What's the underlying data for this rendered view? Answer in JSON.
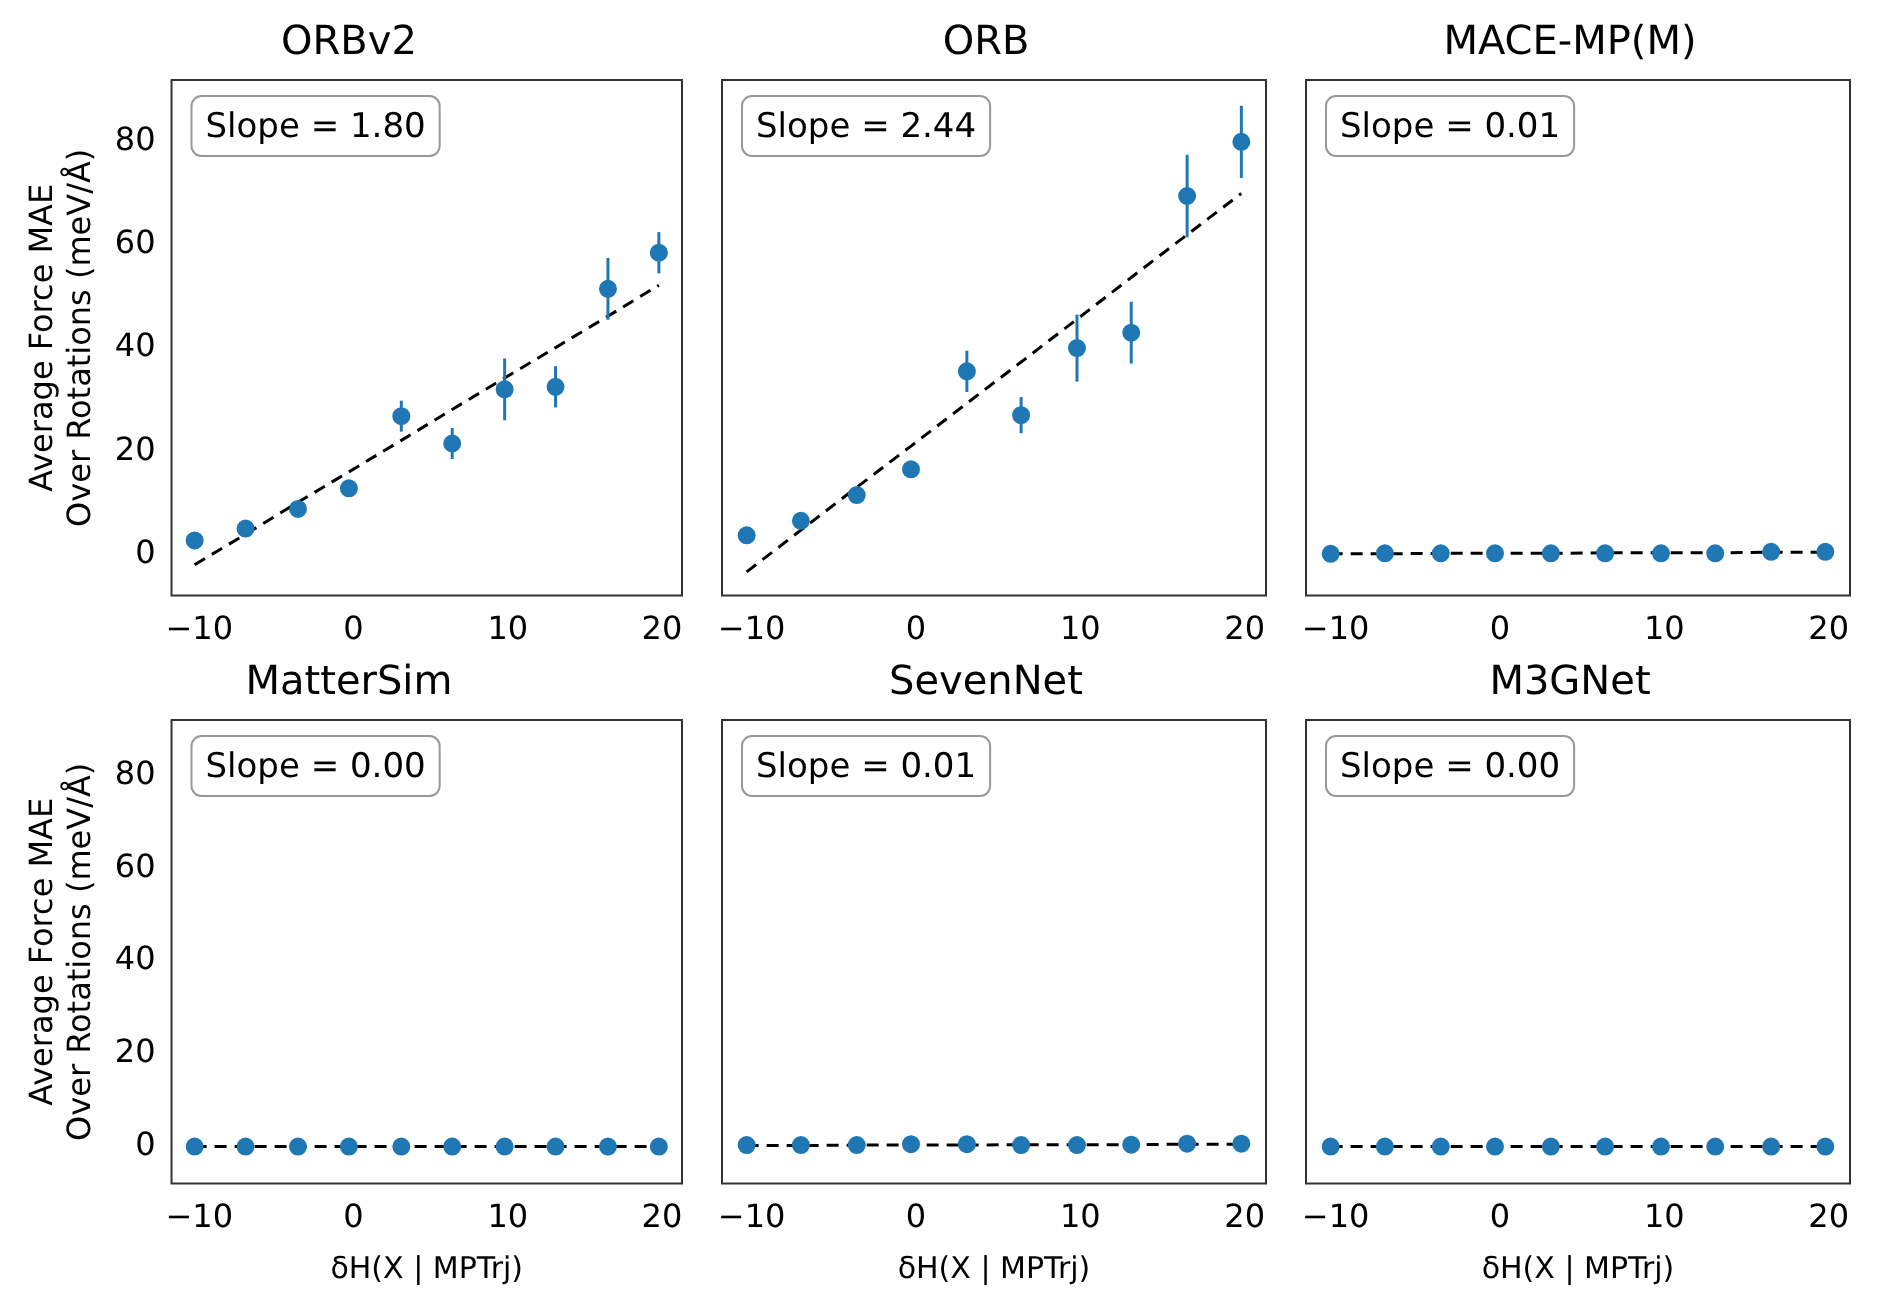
{
  "chart_data": [
    {
      "type": "scatter",
      "title": "ORBv2",
      "ylabel": "Average Force MAE\nOver Rotations (meV/Å)",
      "x": [
        -10.3,
        -7,
        -3.6,
        -0.3,
        3.1,
        6.4,
        9.8,
        13.1,
        16.5,
        19.8
      ],
      "xlim": [
        -11.8,
        21.3
      ],
      "ylim": [
        -8,
        92
      ],
      "xticks": [
        -10,
        0,
        10,
        20
      ],
      "yticks": [
        0,
        20,
        40,
        60,
        80
      ],
      "annotations": [
        "Slope = 1.80"
      ],
      "marker": "circle",
      "series": [
        {
          "type": "scatter",
          "color": "#1f77b4",
          "values": [
            2.7,
            5,
            8.8,
            12.8,
            26.8,
            21.5,
            32,
            32.5,
            51.5,
            58.5
          ],
          "errors": [
            null,
            null,
            null,
            null,
            3,
            3,
            6,
            4,
            6,
            4
          ]
        },
        {
          "type": "line",
          "color": "#000000",
          "line_style": "dashed",
          "marker": "none",
          "values": [
            -2,
            3.9,
            10.1,
            16.0,
            22.1,
            28.1,
            34.2,
            40.1,
            46.2,
            52.2
          ]
        }
      ]
    },
    {
      "type": "scatter",
      "title": "ORB",
      "x": [
        -10.3,
        -7,
        -3.6,
        -0.3,
        3.1,
        6.4,
        9.8,
        13.1,
        16.5,
        19.8
      ],
      "xlim": [
        -11.8,
        21.3
      ],
      "ylim": [
        -8,
        92
      ],
      "xticks": [
        -10,
        0,
        10,
        20
      ],
      "yticks": [
        0,
        20,
        40,
        60,
        80
      ],
      "tick_labels": "x",
      "annotations": [
        "Slope = 2.44"
      ],
      "marker": "circle",
      "series": [
        {
          "type": "scatter",
          "color": "#1f77b4",
          "values": [
            3.7,
            6.5,
            11.5,
            16.5,
            35.5,
            27,
            40,
            43,
            69.5,
            80
          ],
          "errors": [
            null,
            null,
            null,
            null,
            4,
            3.5,
            6.5,
            6,
            8,
            7
          ]
        },
        {
          "type": "line",
          "color": "#000000",
          "line_style": "dashed",
          "marker": "none",
          "values": [
            -3.4,
            4.7,
            13.0,
            21.0,
            29.3,
            37.3,
            45.6,
            53.7,
            62.0,
            70.0
          ]
        }
      ]
    },
    {
      "type": "scatter",
      "title": "MACE-MP(M)",
      "x": [
        -10.3,
        -7,
        -3.6,
        -0.3,
        3.1,
        6.4,
        9.8,
        13.1,
        16.5,
        19.8
      ],
      "xlim": [
        -11.8,
        21.3
      ],
      "ylim": [
        -8,
        92
      ],
      "xticks": [
        -10,
        0,
        10,
        20
      ],
      "yticks": [
        0,
        20,
        40,
        60,
        80
      ],
      "tick_labels": "x",
      "annotations": [
        "Slope = 0.01"
      ],
      "marker": "circle",
      "series": [
        {
          "type": "scatter",
          "color": "#1f77b4",
          "values": [
            0.1,
            0.2,
            0.2,
            0.2,
            0.2,
            0.2,
            0.2,
            0.2,
            0.5,
            0.5
          ]
        },
        {
          "type": "line",
          "color": "#000000",
          "line_style": "dashed",
          "marker": "none",
          "values": [
            0.1,
            0.1,
            0.2,
            0.2,
            0.2,
            0.3,
            0.3,
            0.3,
            0.4,
            0.4
          ]
        }
      ]
    },
    {
      "type": "scatter",
      "title": "MatterSim",
      "xlabel": "δH(X | MPTrj)",
      "ylabel": "Average Force MAE\nOver Rotations (meV/Å)",
      "x": [
        -10.3,
        -7,
        -3.6,
        -0.3,
        3.1,
        6.4,
        9.8,
        13.1,
        16.5,
        19.8
      ],
      "xlim": [
        -11.8,
        21.3
      ],
      "ylim": [
        -8,
        92
      ],
      "xticks": [
        -10,
        0,
        10,
        20
      ],
      "yticks": [
        0,
        20,
        40,
        60,
        80
      ],
      "annotations": [
        "Slope = 0.00"
      ],
      "marker": "circle",
      "series": [
        {
          "type": "scatter",
          "color": "#1f77b4",
          "values": [
            0,
            0,
            0,
            0,
            0,
            0,
            0,
            0,
            0,
            0
          ]
        },
        {
          "type": "line",
          "color": "#000000",
          "line_style": "dashed",
          "marker": "none",
          "values": [
            0,
            0,
            0,
            0,
            0,
            0,
            0,
            0,
            0,
            0
          ]
        }
      ]
    },
    {
      "type": "scatter",
      "title": "SevenNet",
      "xlabel": "δH(X | MPTrj)",
      "x": [
        -10.3,
        -7,
        -3.6,
        -0.3,
        3.1,
        6.4,
        9.8,
        13.1,
        16.5,
        19.8
      ],
      "xlim": [
        -11.8,
        21.3
      ],
      "ylim": [
        -8,
        92
      ],
      "xticks": [
        -10,
        0,
        10,
        20
      ],
      "yticks": [
        0,
        20,
        40,
        60,
        80
      ],
      "tick_labels": "x",
      "annotations": [
        "Slope = 0.01"
      ],
      "marker": "circle",
      "series": [
        {
          "type": "scatter",
          "color": "#1f77b4",
          "values": [
            0.3,
            0.3,
            0.3,
            0.5,
            0.5,
            0.3,
            0.3,
            0.4,
            0.6,
            0.6
          ]
        },
        {
          "type": "line",
          "color": "#000000",
          "line_style": "dashed",
          "marker": "none",
          "values": [
            0.2,
            0.2,
            0.3,
            0.3,
            0.3,
            0.4,
            0.4,
            0.4,
            0.5,
            0.5
          ]
        }
      ]
    },
    {
      "type": "scatter",
      "title": "M3GNet",
      "xlabel": "δH(X | MPTrj)",
      "x": [
        -10.3,
        -7,
        -3.6,
        -0.3,
        3.1,
        6.4,
        9.8,
        13.1,
        16.5,
        19.8
      ],
      "xlim": [
        -11.8,
        21.3
      ],
      "ylim": [
        -8,
        92
      ],
      "xticks": [
        -10,
        0,
        10,
        20
      ],
      "yticks": [
        0,
        20,
        40,
        60,
        80
      ],
      "tick_labels": "x",
      "annotations": [
        "Slope = 0.00"
      ],
      "marker": "circle",
      "series": [
        {
          "type": "scatter",
          "color": "#1f77b4",
          "values": [
            0,
            0,
            0,
            0,
            0,
            0,
            0,
            0,
            0,
            0
          ]
        },
        {
          "type": "line",
          "color": "#000000",
          "line_style": "dashed",
          "marker": "none",
          "values": [
            0,
            0,
            0,
            0,
            0,
            0,
            0,
            0,
            0,
            0
          ]
        }
      ]
    }
  ]
}
